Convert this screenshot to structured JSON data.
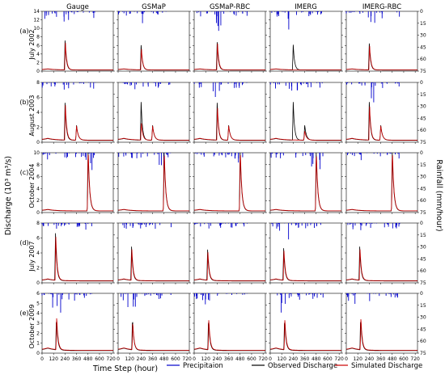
{
  "chart_data": {
    "type": "line",
    "columns": [
      "Gauge",
      "GSMaP",
      "GSMaP-RBC",
      "IMERG",
      "IMERG-RBC"
    ],
    "rows": [
      {
        "tag": "(a)",
        "event": "July 2002",
        "ylim": [
          0,
          14
        ],
        "yticks": [
          0,
          2,
          4,
          6,
          8,
          10,
          12,
          14
        ],
        "peak_hour": 240,
        "peaks_obs": [
          6.9,
          5.8,
          6.5,
          5.9,
          6.2
        ],
        "peaks_sim": [
          6.8,
          5.2,
          6.6,
          0,
          6.0
        ]
      },
      {
        "tag": "(b)",
        "event": "August 2003",
        "ylim": [
          0,
          8
        ],
        "yticks": [
          0,
          2,
          4,
          6,
          8
        ],
        "peak_hour": 240,
        "peaks_obs": [
          5.0,
          5.1,
          5.0,
          5.1,
          5.1
        ],
        "peaks_sim": [
          5.0,
          2.4,
          4.6,
          0,
          4.8
        ]
      },
      {
        "tag": "(c)",
        "event": "October 2004",
        "ylim": [
          0,
          10
        ],
        "yticks": [
          0,
          2,
          4,
          6,
          8,
          10
        ],
        "peak_hour": 480,
        "peaks_obs": [
          5.8,
          5.7,
          5.6,
          5.5,
          5.6
        ],
        "peaks_sim": [
          6.0,
          5.8,
          5.9,
          5.7,
          5.9
        ]
      },
      {
        "tag": "(d)",
        "event": "July 2007",
        "ylim": [
          0,
          8
        ],
        "yticks": [
          0,
          2,
          4,
          6,
          8
        ],
        "peak_hour": 140,
        "peaks_obs": [
          6.3,
          4.5,
          4.1,
          4.3,
          4.5
        ],
        "peaks_sim": [
          6.2,
          4.4,
          4.0,
          4.2,
          4.4
        ]
      },
      {
        "tag": "(e)",
        "event": "October 2009",
        "ylim": [
          0,
          6
        ],
        "yticks": [
          0,
          1,
          2,
          3,
          4,
          5,
          6
        ],
        "peak_hour": 150,
        "peaks_obs": [
          3.3,
          3.2,
          3.2,
          3.2,
          3.3
        ],
        "peaks_sim": [
          3.3,
          2.7,
          3.1,
          3.1,
          3.2
        ]
      }
    ],
    "x_ticks": [
      0,
      120,
      240,
      360,
      480,
      600,
      720
    ],
    "xlim": [
      0,
      744
    ],
    "rain_ticks": [
      0,
      15,
      30,
      45,
      60,
      75
    ],
    "rain_lim": [
      0,
      75
    ],
    "xlabel": "Time Step (hour)",
    "ylabel": "Discharge (10³ m³/s)",
    "y2label": "Rainfall (mm/hour)",
    "series": [
      {
        "name": "Precipitaion",
        "color": "#0000cc"
      },
      {
        "name": "Observed Discharge",
        "color": "#000000"
      },
      {
        "name": "Simulated Discharge",
        "color": "#cc0000"
      }
    ]
  }
}
